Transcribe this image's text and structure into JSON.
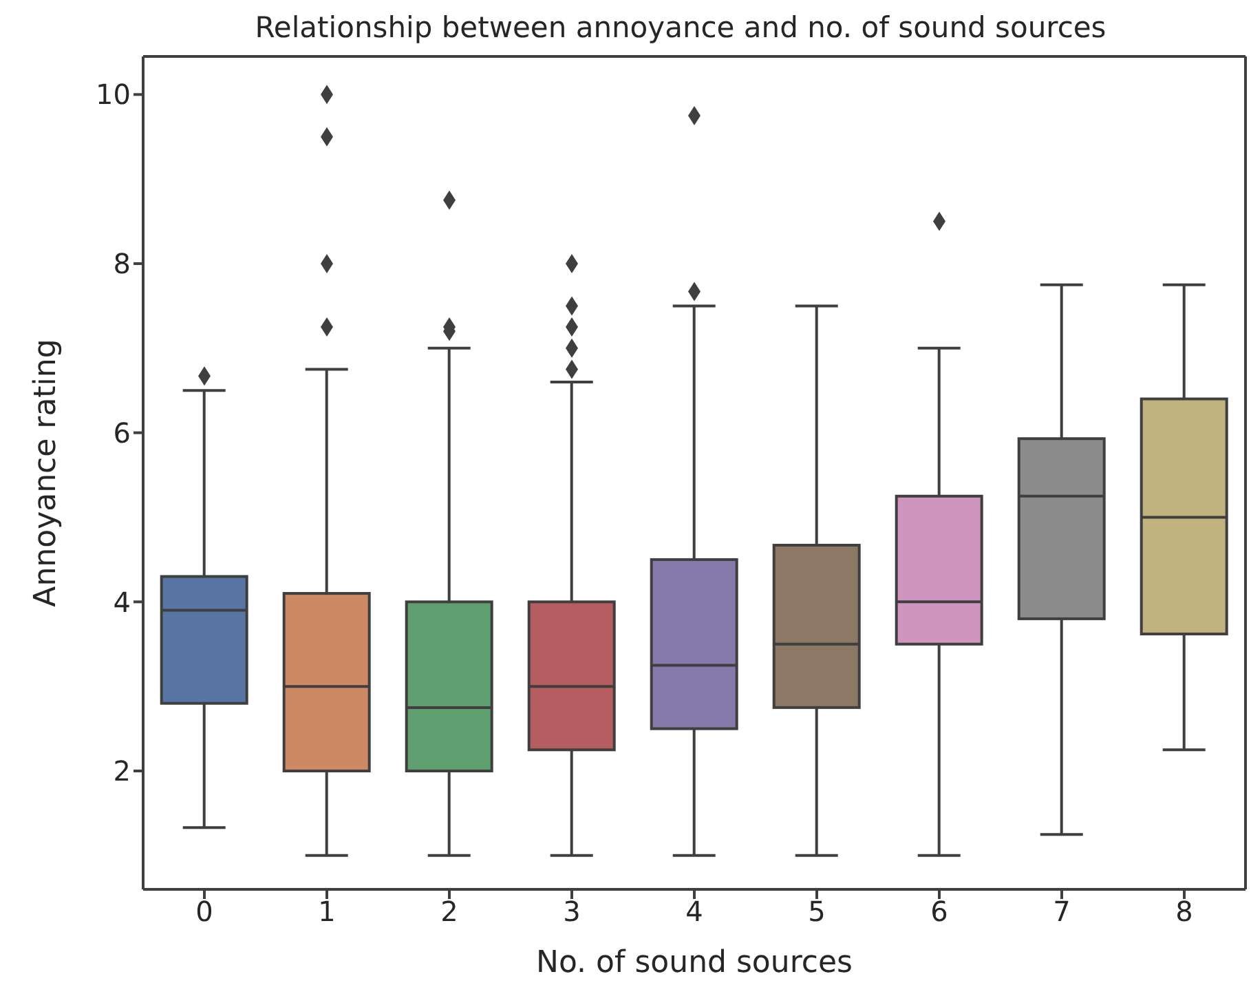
{
  "chart_data": {
    "type": "box",
    "title": "Relationship between annoyance and no. of sound sources",
    "xlabel": "No. of sound sources",
    "ylabel": "Annoyance rating",
    "categories": [
      "0",
      "1",
      "2",
      "3",
      "4",
      "5",
      "6",
      "7",
      "8"
    ],
    "colors": [
      "#5875a4",
      "#cc8963",
      "#5f9e6e",
      "#b55d60",
      "#857aab",
      "#8d7866",
      "#d095bf",
      "#8c8c8c",
      "#c1b37f"
    ],
    "boxes": [
      {
        "low": 1.33,
        "q1": 2.8,
        "median": 3.9,
        "q3": 4.3,
        "high": 6.5,
        "outliers": [
          6.67
        ]
      },
      {
        "low": 1,
        "q1": 2,
        "median": 3,
        "q3": 4.1,
        "high": 6.75,
        "outliers": [
          7.25,
          8,
          9.5,
          10
        ]
      },
      {
        "low": 1,
        "q1": 2,
        "median": 2.75,
        "q3": 4,
        "high": 7,
        "outliers": [
          7.2,
          7.25,
          8.75
        ]
      },
      {
        "low": 1,
        "q1": 2.25,
        "median": 3,
        "q3": 4,
        "high": 6.6,
        "outliers": [
          6.75,
          7,
          7.25,
          7.5,
          8
        ]
      },
      {
        "low": 1,
        "q1": 2.5,
        "median": 3.25,
        "q3": 4.5,
        "high": 7.5,
        "outliers": [
          7.67,
          9.75
        ]
      },
      {
        "low": 1,
        "q1": 2.75,
        "median": 3.5,
        "q3": 4.67,
        "high": 7.5
      },
      {
        "low": 1,
        "q1": 3.5,
        "median": 4,
        "q3": 5.25,
        "high": 7,
        "outliers": [
          8.5
        ]
      },
      {
        "low": 1.25,
        "q1": 3.8,
        "median": 5.25,
        "q3": 5.93,
        "high": 7.75
      },
      {
        "low": 2.25,
        "q1": 3.62,
        "median": 5,
        "q3": 6.4,
        "high": 7.75
      }
    ],
    "ylim": [
      0.6,
      10.45
    ],
    "yticks": [
      2,
      4,
      6,
      8,
      10
    ],
    "grid": false,
    "legend": false,
    "marker": "diamond"
  }
}
